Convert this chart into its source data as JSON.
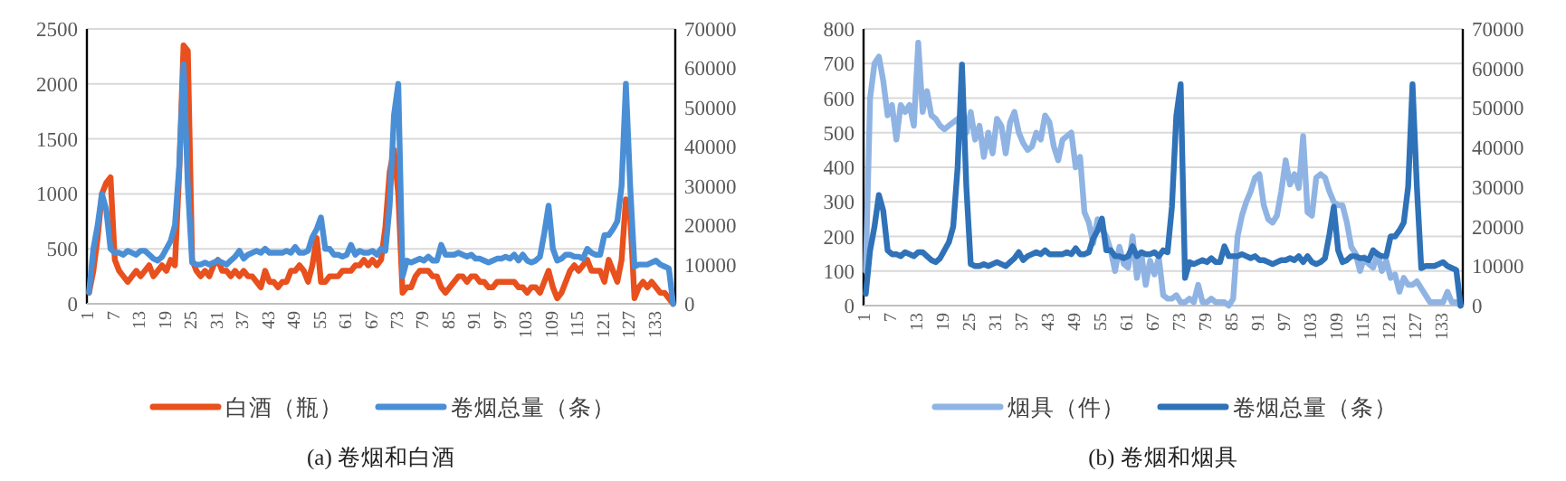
{
  "chart_data": [
    {
      "type": "line",
      "title": "(a) 卷烟和白酒",
      "categories": [
        "1",
        null,
        null,
        null,
        null,
        null,
        "7",
        null,
        null,
        null,
        null,
        null,
        "13",
        null,
        null,
        null,
        null,
        null,
        "19",
        null,
        null,
        null,
        null,
        null,
        "25",
        null,
        null,
        null,
        null,
        null,
        "31",
        null,
        null,
        null,
        null,
        null,
        "37",
        null,
        null,
        null,
        null,
        null,
        "43",
        null,
        null,
        null,
        null,
        null,
        "49",
        null,
        null,
        null,
        null,
        null,
        "55",
        null,
        null,
        null,
        null,
        null,
        "61",
        null,
        null,
        null,
        null,
        null,
        "67",
        null,
        null,
        null,
        null,
        null,
        "73",
        null,
        null,
        null,
        null,
        null,
        "79",
        null,
        null,
        null,
        null,
        null,
        "85",
        null,
        null,
        null,
        null,
        null,
        "91",
        null,
        null,
        null,
        null,
        null,
        "97",
        null,
        null,
        null,
        null,
        null,
        "103",
        null,
        null,
        null,
        null,
        null,
        "109",
        null,
        null,
        null,
        null,
        null,
        "115",
        null,
        null,
        null,
        null,
        null,
        "121",
        null,
        null,
        null,
        null,
        null,
        "127",
        null,
        null,
        null,
        null,
        null,
        "133",
        null,
        null,
        null,
        null
      ],
      "series": [
        {
          "name": "白酒（瓶）",
          "color": "#e8501e",
          "values": [
            100,
            300,
            600,
            1000,
            1100,
            1150,
            400,
            300,
            250,
            200,
            250,
            300,
            250,
            300,
            350,
            250,
            300,
            350,
            300,
            400,
            350,
            1200,
            2350,
            2300,
            400,
            300,
            250,
            300,
            250,
            350,
            400,
            300,
            300,
            250,
            300,
            250,
            300,
            250,
            250,
            200,
            150,
            300,
            200,
            200,
            150,
            200,
            200,
            300,
            300,
            350,
            300,
            200,
            350,
            600,
            200,
            200,
            250,
            250,
            250,
            300,
            300,
            300,
            350,
            350,
            400,
            350,
            400,
            350,
            400,
            700,
            1200,
            1400,
            1000,
            100,
            150,
            150,
            250,
            300,
            300,
            300,
            250,
            250,
            150,
            100,
            150,
            200,
            250,
            250,
            200,
            250,
            250,
            200,
            200,
            150,
            150,
            200,
            200,
            200,
            200,
            200,
            150,
            150,
            100,
            150,
            150,
            100,
            200,
            300,
            150,
            50,
            100,
            200,
            300,
            350,
            300,
            350,
            400,
            300,
            300,
            300,
            200,
            400,
            300,
            200,
            400,
            950,
            800,
            50,
            150,
            200,
            150,
            200,
            150,
            100,
            100,
            50,
            0
          ]
        },
        {
          "name": "卷烟总量（条）",
          "color": "#4a8fd6",
          "axis": "y2",
          "values": [
            3000,
            14000,
            20000,
            28000,
            24000,
            14000,
            13000,
            13000,
            12500,
            13500,
            13000,
            12500,
            13500,
            13500,
            12500,
            11500,
            11000,
            12000,
            14000,
            16000,
            20000,
            35000,
            61000,
            30000,
            10500,
            10000,
            10000,
            10500,
            10000,
            10500,
            11000,
            10500,
            10000,
            11000,
            12000,
            13500,
            11500,
            12500,
            13000,
            13500,
            13000,
            14000,
            13000,
            13000,
            13000,
            13000,
            13500,
            13000,
            14500,
            13000,
            13000,
            13500,
            17000,
            19000,
            22000,
            14000,
            14000,
            12500,
            12500,
            12000,
            12500,
            15000,
            12500,
            13500,
            13000,
            13000,
            13500,
            12500,
            14000,
            13500,
            25000,
            48000,
            56000,
            7000,
            11000,
            10500,
            11000,
            11500,
            11000,
            12000,
            11000,
            11000,
            15000,
            12500,
            12500,
            12500,
            13000,
            12500,
            12000,
            12500,
            11500,
            11500,
            11000,
            10500,
            11000,
            11500,
            11500,
            12000,
            11500,
            12500,
            11000,
            12500,
            11000,
            10500,
            11000,
            12000,
            18000,
            25000,
            14000,
            11000,
            11500,
            12500,
            12500,
            12000,
            12000,
            11500,
            14000,
            13000,
            12500,
            12500,
            17500,
            17500,
            19000,
            21000,
            30000,
            56000,
            30000,
            9500,
            10000,
            10000,
            10000,
            10500,
            11000,
            10000,
            9500,
            9000,
            0
          ]
        }
      ],
      "ylim": [
        0,
        2500
      ],
      "yticks": [
        0,
        500,
        1000,
        1500,
        2000,
        2500
      ],
      "y2lim": [
        0,
        70000
      ],
      "y2ticks": [
        0,
        10000,
        20000,
        30000,
        40000,
        50000,
        60000,
        70000
      ],
      "grid": "y",
      "legend": "bottom"
    },
    {
      "type": "line",
      "title": "(b) 卷烟和烟具",
      "categories": [
        "1",
        null,
        null,
        null,
        null,
        null,
        "7",
        null,
        null,
        null,
        null,
        null,
        "13",
        null,
        null,
        null,
        null,
        null,
        "19",
        null,
        null,
        null,
        null,
        null,
        "25",
        null,
        null,
        null,
        null,
        null,
        "31",
        null,
        null,
        null,
        null,
        null,
        "37",
        null,
        null,
        null,
        null,
        null,
        "43",
        null,
        null,
        null,
        null,
        null,
        "49",
        null,
        null,
        null,
        null,
        null,
        "55",
        null,
        null,
        null,
        null,
        null,
        "61",
        null,
        null,
        null,
        null,
        null,
        "67",
        null,
        null,
        null,
        null,
        null,
        "73",
        null,
        null,
        null,
        null,
        null,
        "79",
        null,
        null,
        null,
        null,
        null,
        "85",
        null,
        null,
        null,
        null,
        null,
        "91",
        null,
        null,
        null,
        null,
        null,
        "97",
        null,
        null,
        null,
        null,
        null,
        "103",
        null,
        null,
        null,
        null,
        null,
        "109",
        null,
        null,
        null,
        null,
        null,
        "115",
        null,
        null,
        null,
        null,
        null,
        "121",
        null,
        null,
        null,
        null,
        null,
        "127",
        null,
        null,
        null,
        null,
        null,
        "133",
        null,
        null,
        null,
        null
      ],
      "series": [
        {
          "name": "烟具（件）",
          "color": "#8fb4e3",
          "values": [
            100,
            600,
            700,
            720,
            650,
            550,
            580,
            480,
            580,
            560,
            580,
            520,
            760,
            560,
            620,
            550,
            540,
            520,
            510,
            520,
            530,
            540,
            500,
            500,
            560,
            480,
            520,
            430,
            500,
            440,
            540,
            520,
            440,
            530,
            560,
            500,
            470,
            450,
            460,
            500,
            480,
            550,
            530,
            460,
            420,
            480,
            490,
            500,
            400,
            430,
            270,
            240,
            180,
            250,
            220,
            200,
            160,
            100,
            170,
            120,
            110,
            200,
            80,
            150,
            60,
            130,
            90,
            140,
            30,
            20,
            20,
            30,
            10,
            10,
            20,
            10,
            60,
            10,
            10,
            20,
            10,
            10,
            10,
            0,
            20,
            200,
            260,
            300,
            330,
            370,
            380,
            290,
            250,
            240,
            260,
            330,
            420,
            350,
            380,
            340,
            490,
            270,
            260,
            370,
            380,
            370,
            330,
            300,
            290,
            290,
            240,
            170,
            150,
            100,
            140,
            120,
            110,
            150,
            100,
            130,
            80,
            90,
            40,
            80,
            60,
            60,
            70,
            50,
            30,
            10,
            10,
            10,
            10,
            40,
            10,
            10,
            0
          ]
        },
        {
          "name": "卷烟总量（条）",
          "color": "#2f72b8",
          "axis": "y2",
          "values": [
            3000,
            14000,
            20000,
            28000,
            24000,
            14000,
            13000,
            13000,
            12500,
            13500,
            13000,
            12500,
            13500,
            13500,
            12500,
            11500,
            11000,
            12000,
            14000,
            16000,
            20000,
            35000,
            61000,
            30000,
            10500,
            10000,
            10000,
            10500,
            10000,
            10500,
            11000,
            10500,
            10000,
            11000,
            12000,
            13500,
            11500,
            12500,
            13000,
            13500,
            13000,
            14000,
            13000,
            13000,
            13000,
            13000,
            13500,
            13000,
            14500,
            13000,
            13000,
            13500,
            17000,
            19000,
            22000,
            14000,
            14000,
            12500,
            12500,
            12000,
            12500,
            15000,
            12500,
            13500,
            13000,
            13000,
            13500,
            12500,
            14000,
            13500,
            25000,
            48000,
            56000,
            7000,
            11000,
            10500,
            11000,
            11500,
            11000,
            12000,
            11000,
            11000,
            15000,
            12500,
            12500,
            12500,
            13000,
            12500,
            12000,
            12500,
            11500,
            11500,
            11000,
            10500,
            11000,
            11500,
            11500,
            12000,
            11500,
            12500,
            11000,
            12500,
            11000,
            10500,
            11000,
            12000,
            18000,
            25000,
            14000,
            11000,
            11500,
            12500,
            12500,
            12000,
            12000,
            11500,
            14000,
            13000,
            12500,
            12500,
            17500,
            17500,
            19000,
            21000,
            30000,
            56000,
            30000,
            9500,
            10000,
            10000,
            10000,
            10500,
            11000,
            10000,
            9500,
            9000,
            0
          ]
        }
      ],
      "ylim": [
        0,
        800
      ],
      "yticks": [
        0,
        100,
        200,
        300,
        400,
        500,
        600,
        700,
        800
      ],
      "y2lim": [
        0,
        70000
      ],
      "y2ticks": [
        0,
        10000,
        20000,
        30000,
        40000,
        50000,
        60000,
        70000
      ],
      "grid": "y",
      "legend": "bottom"
    }
  ]
}
